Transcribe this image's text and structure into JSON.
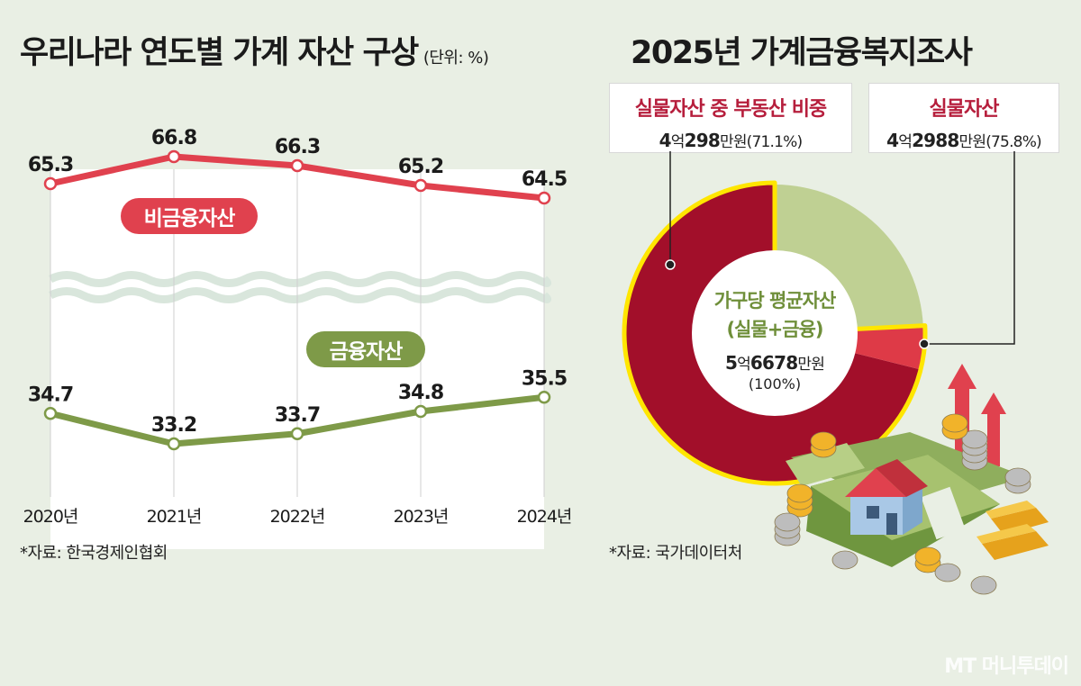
{
  "left": {
    "title": "우리나라 연도별 가계 자산 구상",
    "unit": "(단위: %)",
    "source": "*자료: 한국경제인협회"
  },
  "right": {
    "title": "2025년 가계금융복지조사",
    "source": "*자료: 국가데이터처",
    "callout_realestate": {
      "title": "실물자산 중 부동산 비중",
      "v1": "4",
      "u1": "억",
      "v2": "298",
      "u2": "만원(71.1%)"
    },
    "callout_real": {
      "title": "실물자산",
      "v1": "4",
      "u1": "억",
      "v2": "2988",
      "u2": "만원(75.8%)"
    },
    "center": {
      "line1": "가구당 평균자산",
      "line2": "(실물+금융)",
      "v1": "5",
      "u1": "억",
      "v2": "6678",
      "u2": "만원",
      "pct": "(100%)"
    }
  },
  "watermark": "MT 머니투데이",
  "colors": {
    "nonfinancial": "#e0414e",
    "financial": "#7e9a48",
    "realestate": "#a20f2a",
    "real_other": "#de3a47",
    "financial_slice": "#bfd093",
    "highlight": "#ffe600",
    "background": "#e9efe4"
  },
  "chart_data": [
    {
      "type": "line",
      "categories": [
        "2020년",
        "2021년",
        "2022년",
        "2023년",
        "2024년"
      ],
      "series": [
        {
          "name": "비금융자산",
          "values": [
            65.3,
            66.8,
            66.3,
            65.2,
            64.5
          ],
          "labels": [
            "65.3",
            "66.8",
            "66.3",
            "65.2",
            "64.5"
          ]
        },
        {
          "name": "금융자산",
          "values": [
            34.7,
            33.2,
            33.7,
            34.8,
            35.5
          ],
          "labels": [
            "34.7",
            "33.2",
            "33.7",
            "34.8",
            "35.5"
          ]
        }
      ],
      "axis_break": true
    },
    {
      "type": "pie",
      "donut": true,
      "slices": [
        {
          "label": "실물자산 중 부동산",
          "value": 71.1
        },
        {
          "label": "실물자산 (기타)",
          "value": 4.7
        },
        {
          "label": "금융자산",
          "value": 24.2
        }
      ]
    }
  ]
}
